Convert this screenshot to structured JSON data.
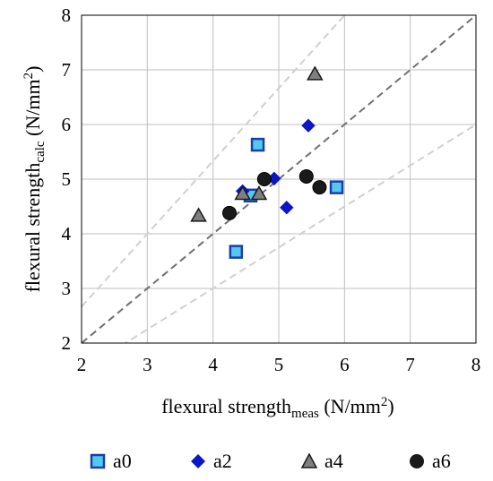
{
  "chart_data": {
    "type": "scatter",
    "xlabel": {
      "main": "flexural strength",
      "sub": "meas",
      "unit": "(N/mm",
      "sup": "2",
      "close": ")"
    },
    "ylabel": {
      "main": "flexural strength",
      "sub": "calc",
      "unit": "(N/mm",
      "sup": "2",
      "close": ")"
    },
    "xlim": [
      2,
      8
    ],
    "ylim": [
      2,
      8
    ],
    "xticks": [
      "2",
      "3",
      "4",
      "5",
      "6",
      "7",
      "8"
    ],
    "yticks": [
      "2",
      "3",
      "4",
      "5",
      "6",
      "7",
      "8"
    ],
    "grid": true,
    "legend_position": "bottom",
    "reference_lines": [
      {
        "kind": "equality",
        "slope": 1.0,
        "color": "#707070"
      },
      {
        "kind": "upper-bound",
        "slope": 1.333,
        "color": "#d0d0d0"
      },
      {
        "kind": "lower-bound",
        "slope": 0.75,
        "color": "#d0d0d0"
      }
    ],
    "series": [
      {
        "name": "a0",
        "marker": "square",
        "fill": "#55c8f0",
        "stroke": "#1a3fa8",
        "points": [
          [
            4.35,
            3.67
          ],
          [
            4.57,
            4.7
          ],
          [
            4.68,
            5.63
          ],
          [
            5.88,
            4.85
          ]
        ]
      },
      {
        "name": "a2",
        "marker": "diamond",
        "fill": "#0b16c4",
        "stroke": "#0b16c4",
        "points": [
          [
            4.45,
            4.78
          ],
          [
            4.93,
            5.01
          ],
          [
            5.12,
            4.48
          ],
          [
            5.45,
            5.98
          ]
        ]
      },
      {
        "name": "a4",
        "marker": "triangle",
        "fill": "#7f7f7f",
        "stroke": "#1a1a1a",
        "points": [
          [
            3.78,
            4.33
          ],
          [
            4.45,
            4.73
          ],
          [
            4.7,
            4.73
          ],
          [
            5.55,
            6.92
          ]
        ]
      },
      {
        "name": "a6",
        "marker": "circle",
        "fill": "#1a1a1a",
        "stroke": "#000000",
        "points": [
          [
            4.25,
            4.38
          ],
          [
            4.78,
            5.0
          ],
          [
            5.42,
            5.05
          ],
          [
            5.62,
            4.85
          ]
        ]
      }
    ]
  }
}
